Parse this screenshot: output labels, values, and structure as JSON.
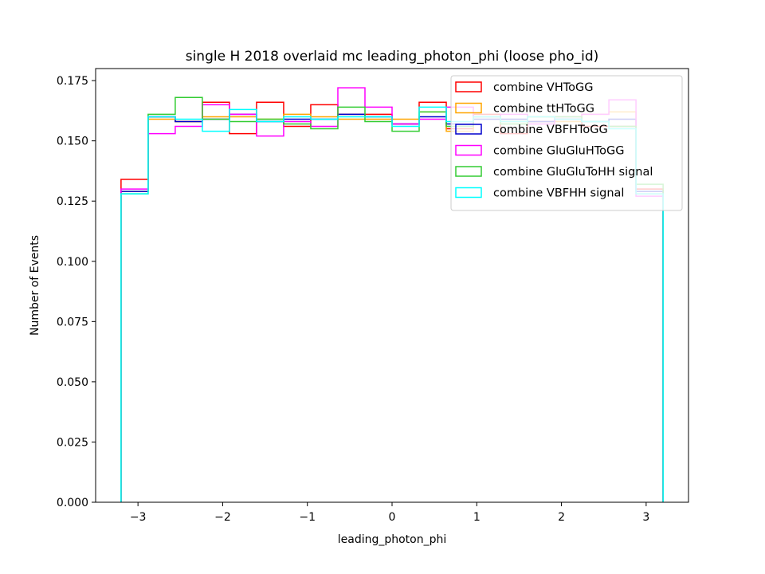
{
  "chart_data": {
    "type": "histogram-step",
    "title": "single H 2018 overlaid mc leading_photon_phi (loose pho_id)",
    "xlabel": "leading_photon_phi",
    "ylabel": "Number of Events",
    "xlim": [
      -3.5,
      3.5
    ],
    "ylim": [
      0,
      0.18
    ],
    "xticks": [
      -3,
      -2,
      -1,
      0,
      1,
      2,
      3
    ],
    "xtick_labels": [
      "−3",
      "−2",
      "−1",
      "0",
      "1",
      "2",
      "3"
    ],
    "yticks": [
      0,
      0.025,
      0.05,
      0.075,
      0.1,
      0.125,
      0.15,
      0.175
    ],
    "ytick_labels": [
      "0.000",
      "0.025",
      "0.050",
      "0.075",
      "0.100",
      "0.125",
      "0.150",
      "0.175"
    ],
    "bin_edges": [
      -3.2,
      -2.88,
      -2.56,
      -2.24,
      -1.92,
      -1.6,
      -1.28,
      -0.96,
      -0.64,
      -0.32,
      0.0,
      0.32,
      0.64,
      0.96,
      1.28,
      1.6,
      1.92,
      2.24,
      2.56,
      2.88,
      3.2
    ],
    "legend_position": "upper-right",
    "grid": false,
    "series": [
      {
        "name": "combine VHToGG",
        "color": "#ff0000",
        "values": [
          0.134,
          0.16,
          0.158,
          0.166,
          0.153,
          0.166,
          0.156,
          0.165,
          0.161,
          0.161,
          0.157,
          0.166,
          0.155,
          0.161,
          0.153,
          0.158,
          0.159,
          0.156,
          0.156,
          0.13
        ]
      },
      {
        "name": "combine ttHToGG",
        "color": "#ffa500",
        "values": [
          0.129,
          0.159,
          0.158,
          0.16,
          0.16,
          0.159,
          0.161,
          0.16,
          0.159,
          0.159,
          0.159,
          0.162,
          0.154,
          0.16,
          0.158,
          0.16,
          0.158,
          0.161,
          0.162,
          0.128
        ]
      },
      {
        "name": "combine VBFHToGG",
        "color": "#0000cc",
        "values": [
          0.129,
          0.16,
          0.158,
          0.159,
          0.161,
          0.158,
          0.159,
          0.159,
          0.161,
          0.16,
          0.157,
          0.16,
          0.157,
          0.159,
          0.159,
          0.158,
          0.159,
          0.158,
          0.159,
          0.129
        ]
      },
      {
        "name": "combine GluGluHToGG",
        "color": "#ff00ff",
        "values": [
          0.13,
          0.153,
          0.156,
          0.165,
          0.161,
          0.152,
          0.158,
          0.156,
          0.172,
          0.164,
          0.157,
          0.159,
          0.164,
          0.16,
          0.161,
          0.157,
          0.16,
          0.161,
          0.167,
          0.127
        ]
      },
      {
        "name": "combine GluGluToHH signal",
        "color": "#33cc33",
        "values": [
          0.128,
          0.161,
          0.168,
          0.159,
          0.158,
          0.159,
          0.157,
          0.155,
          0.164,
          0.158,
          0.154,
          0.162,
          0.156,
          0.16,
          0.157,
          0.16,
          0.16,
          0.158,
          0.156,
          0.132
        ]
      },
      {
        "name": "combine VBFHH signal",
        "color": "#00ffff",
        "values": [
          0.128,
          0.16,
          0.159,
          0.154,
          0.163,
          0.158,
          0.16,
          0.159,
          0.16,
          0.16,
          0.156,
          0.164,
          0.158,
          0.16,
          0.158,
          0.16,
          0.159,
          0.158,
          0.155,
          0.128
        ]
      }
    ]
  }
}
